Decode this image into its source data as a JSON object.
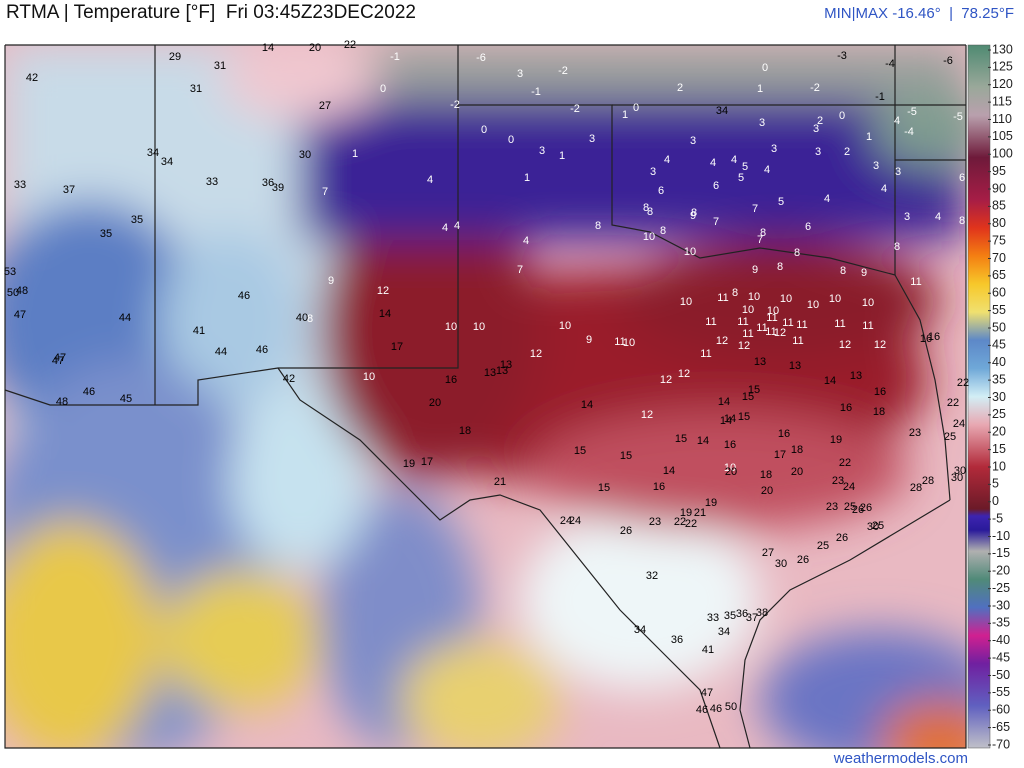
{
  "header": {
    "title": "RTMA | Temperature [°F]  Fri 03:45Z23DEC2022",
    "minmax": "MIN|MAX -16.46°  |  78.25°F"
  },
  "footer": {
    "credit": "weathermodels.com"
  },
  "colorbar": {
    "ticks": [
      130,
      125,
      120,
      115,
      110,
      105,
      100,
      95,
      90,
      85,
      80,
      75,
      70,
      65,
      60,
      55,
      50,
      45,
      40,
      35,
      30,
      25,
      20,
      15,
      10,
      5,
      0,
      -5,
      -10,
      -15,
      -20,
      -25,
      -30,
      -35,
      -40,
      -45,
      -50,
      -55,
      -60,
      -65,
      -70
    ]
  },
  "stations": [
    29,
    31,
    14,
    20,
    22,
    -1,
    -6,
    -3,
    -4,
    -6,
    42,
    3,
    -2,
    0,
    31,
    27,
    0,
    -1,
    2,
    -2,
    -1,
    -2,
    -2,
    1,
    0,
    34,
    1,
    0,
    4,
    -5,
    -5,
    -4,
    0,
    0,
    3,
    3,
    3,
    3,
    2,
    3,
    1,
    34,
    34,
    30,
    1,
    3,
    1,
    4,
    4,
    4,
    3,
    2,
    5,
    4,
    3,
    6,
    33,
    37,
    33,
    36,
    39,
    7,
    4,
    1,
    3,
    6,
    5,
    6,
    4,
    3,
    8,
    8,
    8,
    9,
    7,
    5,
    4,
    35,
    35,
    4,
    4,
    8,
    7,
    3,
    4,
    8,
    10,
    8,
    8,
    7,
    6,
    8,
    4,
    10,
    8,
    7,
    9,
    8,
    8,
    9,
    53,
    50,
    48,
    47,
    44,
    46,
    9,
    12,
    10,
    11,
    8,
    10,
    10,
    10,
    10,
    10,
    11,
    41,
    40,
    8,
    14,
    10,
    10,
    10,
    11,
    10,
    10,
    11,
    11,
    11,
    11,
    11,
    11,
    11,
    17,
    9,
    11,
    10,
    12,
    12,
    11,
    11,
    12,
    11,
    12,
    12,
    16,
    16,
    44,
    46,
    47,
    47,
    13,
    13,
    13,
    11,
    12,
    13,
    13,
    12,
    12,
    42,
    10,
    16,
    14,
    13,
    22,
    48,
    46,
    45,
    15,
    16,
    22,
    20,
    14,
    14,
    15,
    16,
    18,
    24,
    12,
    14,
    14,
    15,
    18,
    15,
    14,
    16,
    19,
    23,
    25,
    16,
    15,
    15,
    17,
    18,
    22,
    19,
    17,
    14,
    10,
    20,
    18,
    20,
    30,
    21,
    23,
    24,
    28,
    30,
    28,
    15,
    16,
    20,
    19,
    23,
    25,
    26,
    26,
    19,
    21,
    22,
    22,
    23,
    24,
    24,
    26,
    26,
    30,
    25,
    25,
    27,
    26,
    30,
    32,
    33,
    35,
    36,
    37,
    38,
    34,
    34,
    36,
    41,
    47,
    46,
    46,
    50
  ]
}
